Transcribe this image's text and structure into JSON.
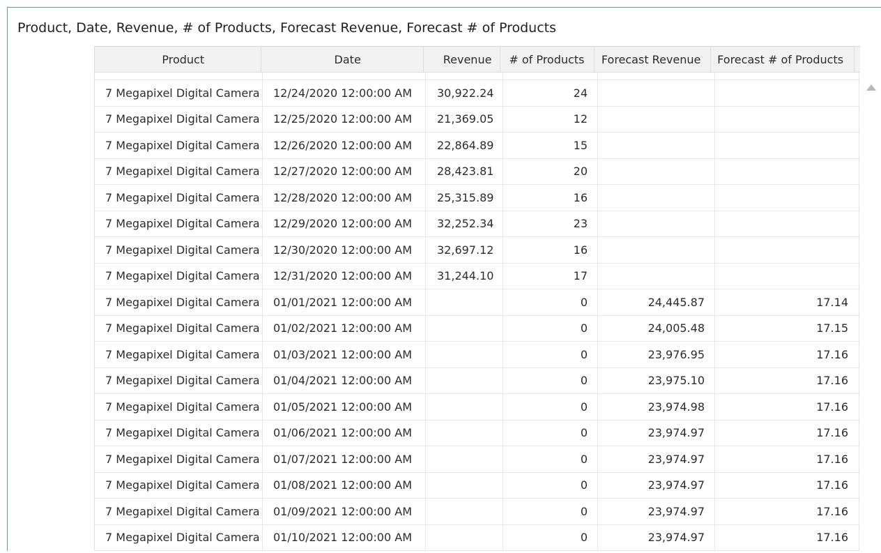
{
  "panel": {
    "title": "Product, Date, Revenue, # of Products, Forecast Revenue, Forecast # of Products"
  },
  "table": {
    "columns": [
      "Product",
      "Date",
      "Revenue",
      "# of Products",
      "Forecast Revenue",
      "Forecast # of Products"
    ],
    "rows": [
      [
        "7 Megapixel Digital Camera",
        "12/24/2020 12:00:00 AM",
        "30,922.24",
        "24",
        "",
        ""
      ],
      [
        "7 Megapixel Digital Camera",
        "12/25/2020 12:00:00 AM",
        "21,369.05",
        "12",
        "",
        ""
      ],
      [
        "7 Megapixel Digital Camera",
        "12/26/2020 12:00:00 AM",
        "22,864.89",
        "15",
        "",
        ""
      ],
      [
        "7 Megapixel Digital Camera",
        "12/27/2020 12:00:00 AM",
        "28,423.81",
        "20",
        "",
        ""
      ],
      [
        "7 Megapixel Digital Camera",
        "12/28/2020 12:00:00 AM",
        "25,315.89",
        "16",
        "",
        ""
      ],
      [
        "7 Megapixel Digital Camera",
        "12/29/2020 12:00:00 AM",
        "32,252.34",
        "23",
        "",
        ""
      ],
      [
        "7 Megapixel Digital Camera",
        "12/30/2020 12:00:00 AM",
        "32,697.12",
        "16",
        "",
        ""
      ],
      [
        "7 Megapixel Digital Camera",
        "12/31/2020 12:00:00 AM",
        "31,244.10",
        "17",
        "",
        ""
      ],
      [
        "7 Megapixel Digital Camera",
        "01/01/2021 12:00:00 AM",
        "",
        "0",
        "24,445.87",
        "17.14"
      ],
      [
        "7 Megapixel Digital Camera",
        "01/02/2021 12:00:00 AM",
        "",
        "0",
        "24,005.48",
        "17.15"
      ],
      [
        "7 Megapixel Digital Camera",
        "01/03/2021 12:00:00 AM",
        "",
        "0",
        "23,976.95",
        "17.16"
      ],
      [
        "7 Megapixel Digital Camera",
        "01/04/2021 12:00:00 AM",
        "",
        "0",
        "23,975.10",
        "17.16"
      ],
      [
        "7 Megapixel Digital Camera",
        "01/05/2021 12:00:00 AM",
        "",
        "0",
        "23,974.98",
        "17.16"
      ],
      [
        "7 Megapixel Digital Camera",
        "01/06/2021 12:00:00 AM",
        "",
        "0",
        "23,974.97",
        "17.16"
      ],
      [
        "7 Megapixel Digital Camera",
        "01/07/2021 12:00:00 AM",
        "",
        "0",
        "23,974.97",
        "17.16"
      ],
      [
        "7 Megapixel Digital Camera",
        "01/08/2021 12:00:00 AM",
        "",
        "0",
        "23,974.97",
        "17.16"
      ],
      [
        "7 Megapixel Digital Camera",
        "01/09/2021 12:00:00 AM",
        "",
        "0",
        "23,974.97",
        "17.16"
      ],
      [
        "7 Megapixel Digital Camera",
        "01/10/2021 12:00:00 AM",
        "",
        "0",
        "23,974.97",
        "17.16"
      ]
    ]
  },
  "scrollbar": {
    "up_icon": "triangle-up-icon"
  },
  "colors": {
    "panel_border": "#6f93a0",
    "header_bg": "#f2f2f2",
    "grid_line": "#e6e6e6",
    "text": "#2b2b2b"
  }
}
